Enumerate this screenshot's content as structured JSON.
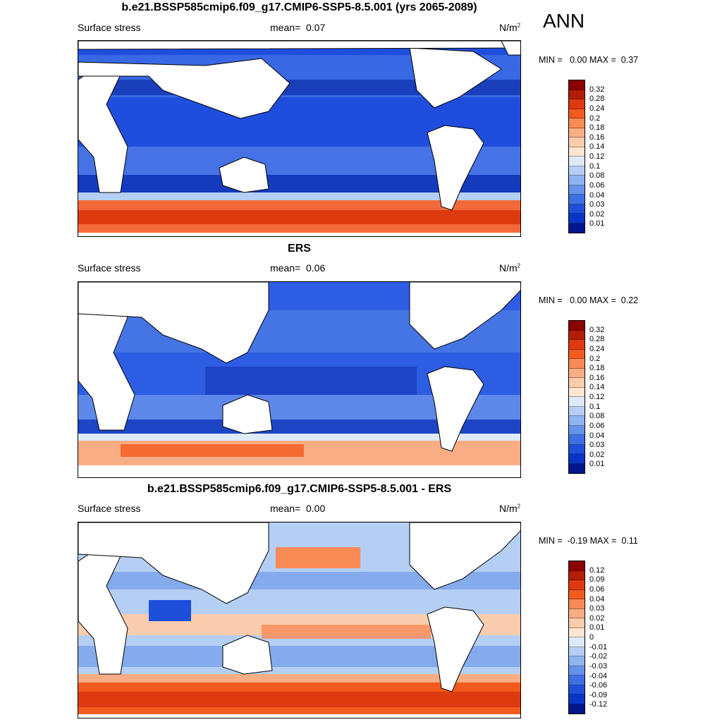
{
  "season": "ANN",
  "panels": [
    {
      "title": "b.e21.BSSP585cmip6.f09_g17.CMIP6-SSP5-8.5.001 (yrs 2065-2089)",
      "variable": "Surface stress",
      "mean_label": "mean=",
      "mean_value": "0.07",
      "units": "N/m",
      "units_exp": "2",
      "min_label": "MIN =",
      "min_value": "0.00",
      "max_label": "MAX =",
      "max_value": "0.37",
      "levels": [
        "0.32",
        "0.28",
        "0.24",
        "0.2",
        "0.18",
        "0.16",
        "0.14",
        "0.12",
        "0.1",
        "0.08",
        "0.06",
        "0.04",
        "0.03",
        "0.02",
        "0.01"
      ],
      "colors": [
        "#8b0000",
        "#b51c06",
        "#dd3a0f",
        "#f25a1e",
        "#f88a55",
        "#f8ad85",
        "#f9ccad",
        "#fde7d2",
        "#deeaf8",
        "#b4cff3",
        "#8eb3ef",
        "#6592ea",
        "#3e6fe4",
        "#1d4fdb",
        "#0934c8",
        "#00158b"
      ]
    },
    {
      "title": "ERS",
      "variable": "Surface stress",
      "mean_label": "mean=",
      "mean_value": "0.06",
      "units": "N/m",
      "units_exp": "2",
      "min_label": "MIN =",
      "min_value": "0.00",
      "max_label": "MAX =",
      "max_value": "0.22",
      "levels": [
        "0.32",
        "0.28",
        "0.24",
        "0.2",
        "0.18",
        "0.16",
        "0.14",
        "0.12",
        "0.1",
        "0.08",
        "0.06",
        "0.04",
        "0.03",
        "0.02",
        "0.01"
      ],
      "colors": [
        "#8b0000",
        "#b51c06",
        "#dd3a0f",
        "#f25a1e",
        "#f88a55",
        "#f8ad85",
        "#f9ccad",
        "#fde7d2",
        "#deeaf8",
        "#b4cff3",
        "#8eb3ef",
        "#6592ea",
        "#3e6fe4",
        "#1d4fdb",
        "#0934c8",
        "#00158b"
      ]
    },
    {
      "title": "b.e21.BSSP585cmip6.f09_g17.CMIP6-SSP5-8.5.001 - ERS",
      "variable": "Surface stress",
      "mean_label": "mean=",
      "mean_value": "0.00",
      "units": "N/m",
      "units_exp": "2",
      "min_label": "MIN =",
      "min_value": "-0.19",
      "max_label": "MAX =",
      "max_value": "0.11",
      "levels": [
        "0.12",
        "0.09",
        "0.06",
        "0.04",
        "0.03",
        "0.02",
        "0.01",
        "0",
        "-0.01",
        "-0.02",
        "-0.03",
        "-0.04",
        "-0.06",
        "-0.09",
        "-0.12"
      ],
      "colors": [
        "#8b0000",
        "#b51c06",
        "#dd3a0f",
        "#f25a1e",
        "#f88a55",
        "#f8ad85",
        "#f9ccad",
        "#fde7d2",
        "#deeaf8",
        "#b4cff3",
        "#8eb3ef",
        "#6592ea",
        "#3e6fe4",
        "#1d4fdb",
        "#0934c8",
        "#00158b"
      ]
    }
  ]
}
